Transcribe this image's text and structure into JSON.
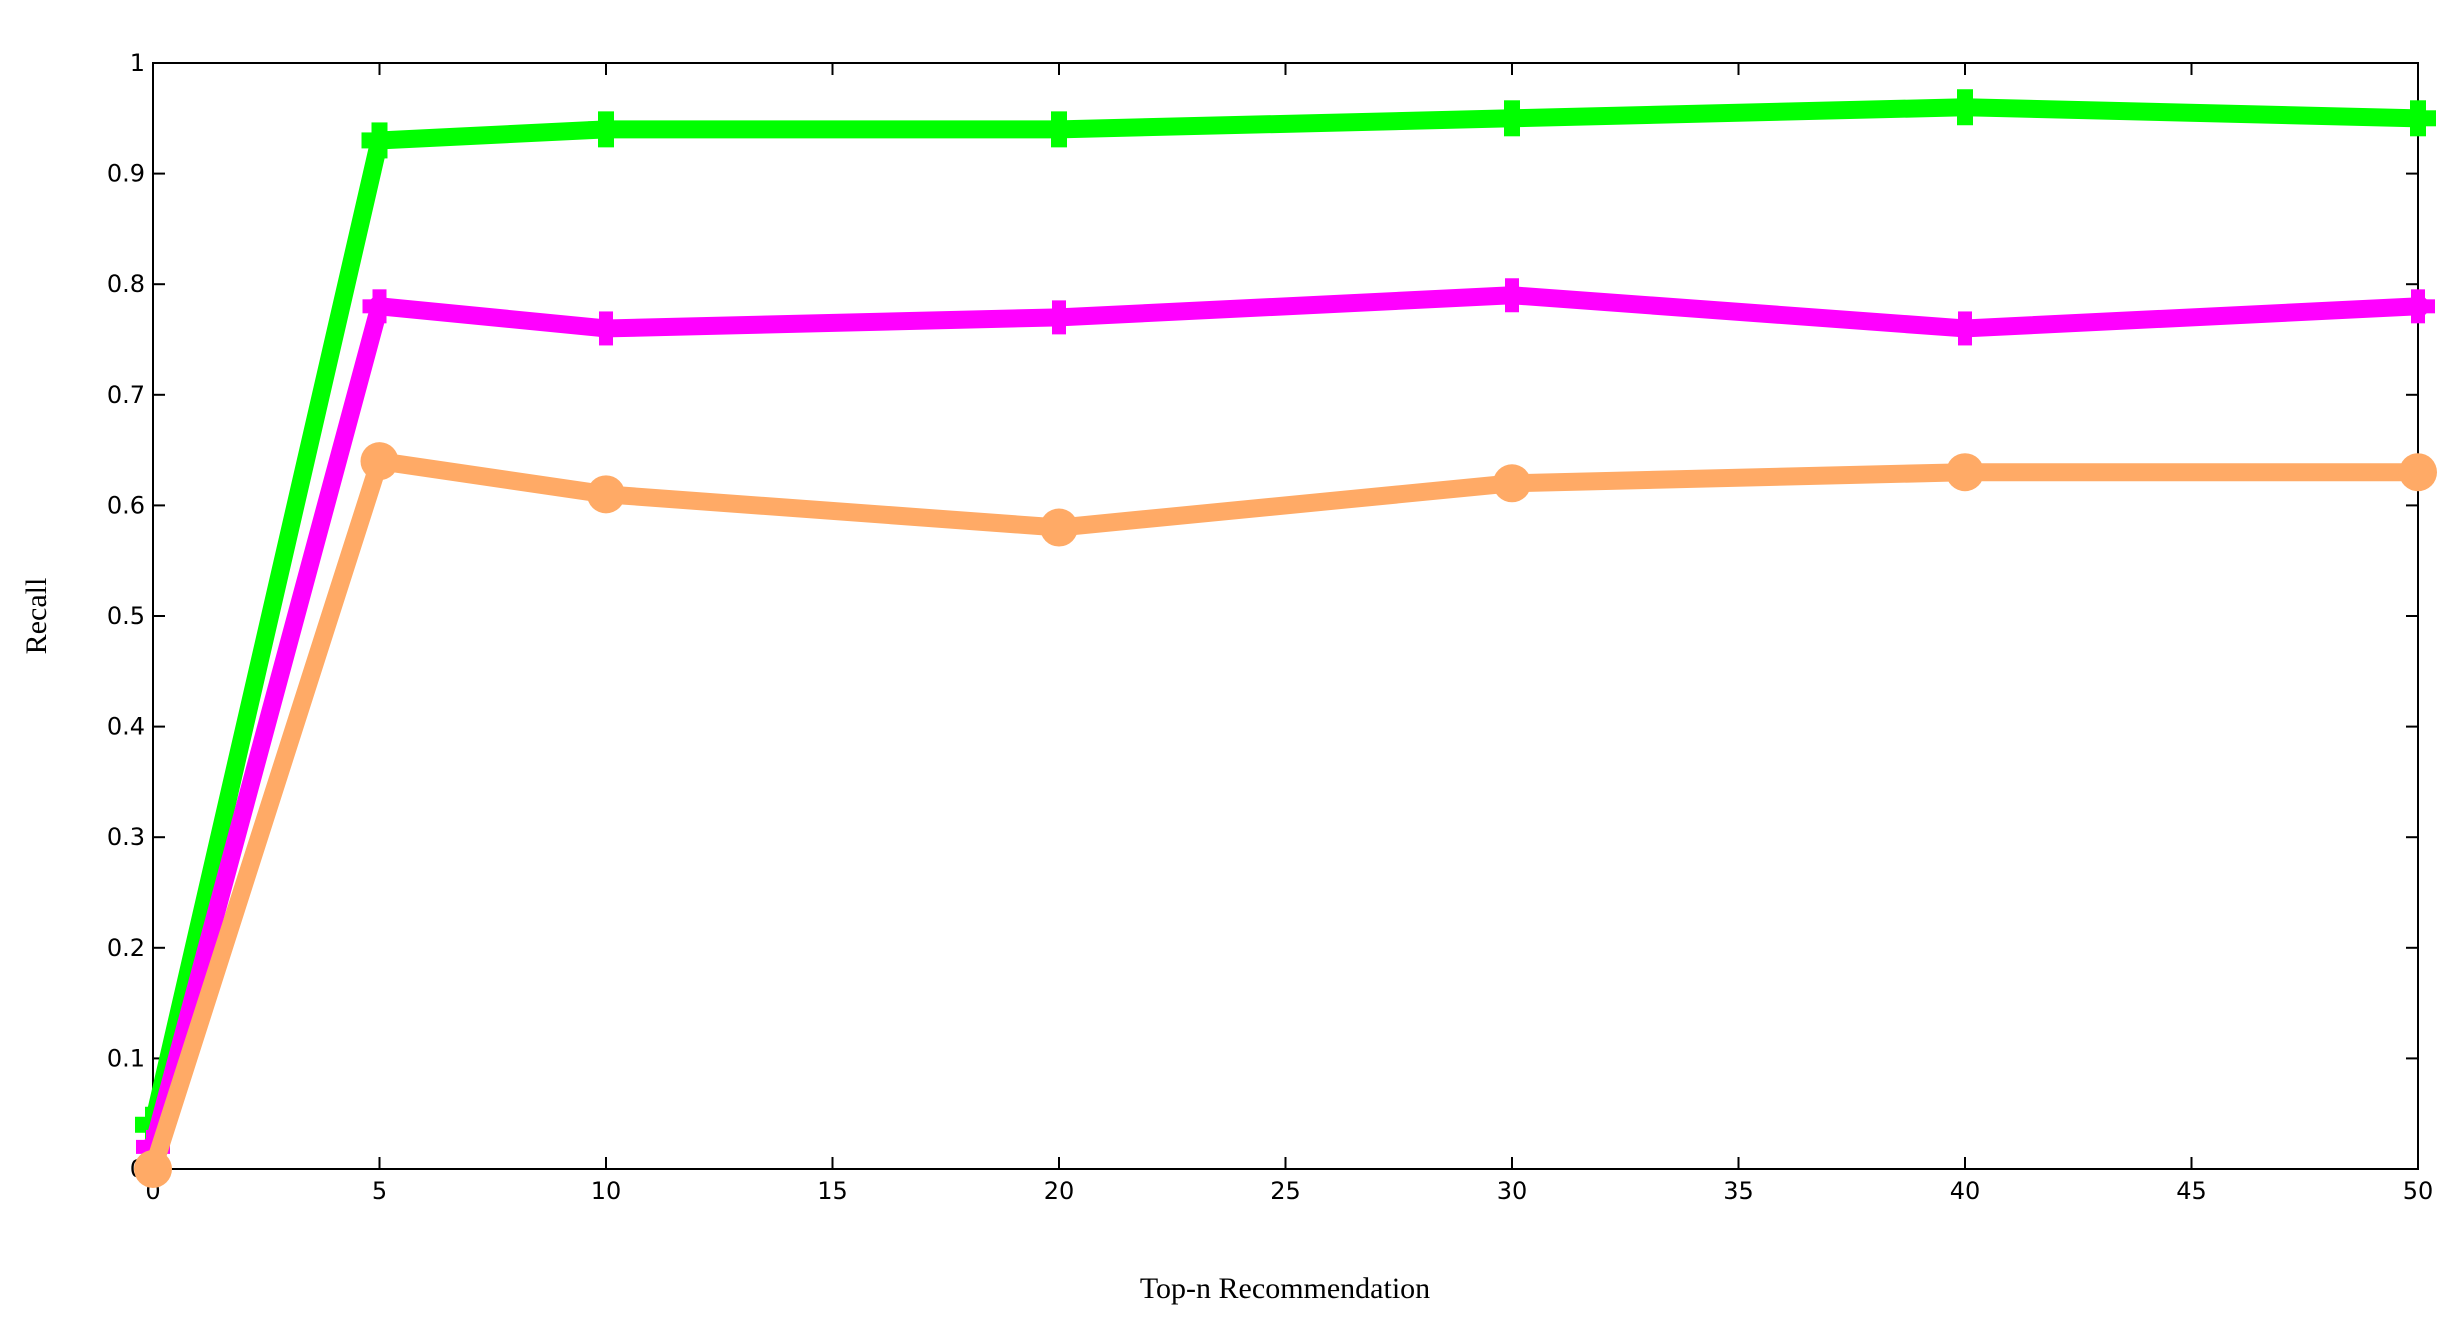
{
  "chart_data": {
    "type": "line",
    "title": "",
    "xlabel": "Top-n Recommendation",
    "ylabel": "Recall",
    "xlim": [
      0,
      50
    ],
    "ylim": [
      0,
      1
    ],
    "xticks": [
      0,
      5,
      10,
      15,
      20,
      25,
      30,
      35,
      40,
      45,
      50
    ],
    "yticks": [
      0,
      0.1,
      0.2,
      0.3,
      0.4,
      0.5,
      0.6,
      0.7,
      0.8,
      0.9,
      1
    ],
    "ytick_labels": [
      "0",
      "0.1",
      "0.2",
      "0.3",
      "0.4",
      "0.5",
      "0.6",
      "0.7",
      "0.8",
      "0.9",
      "1"
    ],
    "x": [
      0,
      5,
      10,
      20,
      30,
      40,
      50
    ],
    "grid": false,
    "legend": "none",
    "series": [
      {
        "color": "#00ff00",
        "marker": "plus",
        "values": [
          0.04,
          0.93,
          0.94,
          0.94,
          0.95,
          0.96,
          0.95
        ]
      },
      {
        "color": "#ff00ff",
        "marker": "star",
        "values": [
          0.02,
          0.78,
          0.76,
          0.77,
          0.79,
          0.76,
          0.78
        ]
      },
      {
        "color": "#ffaa66",
        "marker": "circle",
        "values": [
          0.0,
          0.64,
          0.61,
          0.58,
          0.62,
          0.63,
          0.63
        ]
      }
    ]
  }
}
